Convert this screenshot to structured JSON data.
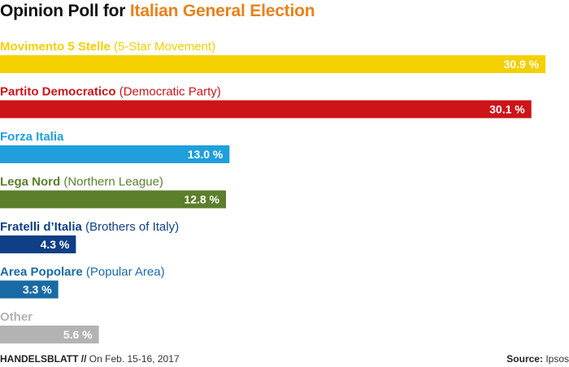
{
  "title": {
    "prefix": "Opinion Poll for ",
    "highlight": "Italian General Election",
    "highlight_color": "#e8821c"
  },
  "footer": {
    "brand": "HANDELSBLATT",
    "separator": "//",
    "date": "On Feb. 15-16, 2017",
    "source_label": "Source:",
    "source": "Ipsos"
  },
  "chart_data": {
    "type": "bar",
    "orientation": "horizontal",
    "unit": "%",
    "xlim": [
      0,
      32
    ],
    "categories": [
      "Movimento 5 Stelle",
      "Partito Democratico",
      "Forza Italia",
      "Lega Nord",
      "Fratelli d’Italia",
      "Area Popolare",
      "Other"
    ],
    "translations": [
      "(5-Star Movement)",
      "(Democratic Party)",
      "",
      "(Northern League)",
      "(Brothers of Italy)",
      "(Popular Area)",
      ""
    ],
    "values": [
      30.9,
      30.1,
      13.0,
      12.8,
      4.3,
      3.3,
      5.6
    ],
    "value_labels": [
      "30.9 %",
      "30.1 %",
      "13.0 %",
      "12.8 %",
      "4.3 %",
      "3.3 %",
      "5.6 %"
    ],
    "colors": [
      "#f5d000",
      "#cc1419",
      "#1f9fdc",
      "#5b7f2b",
      "#0f3f86",
      "#1a6aa5",
      "#b3b3b3"
    ]
  }
}
